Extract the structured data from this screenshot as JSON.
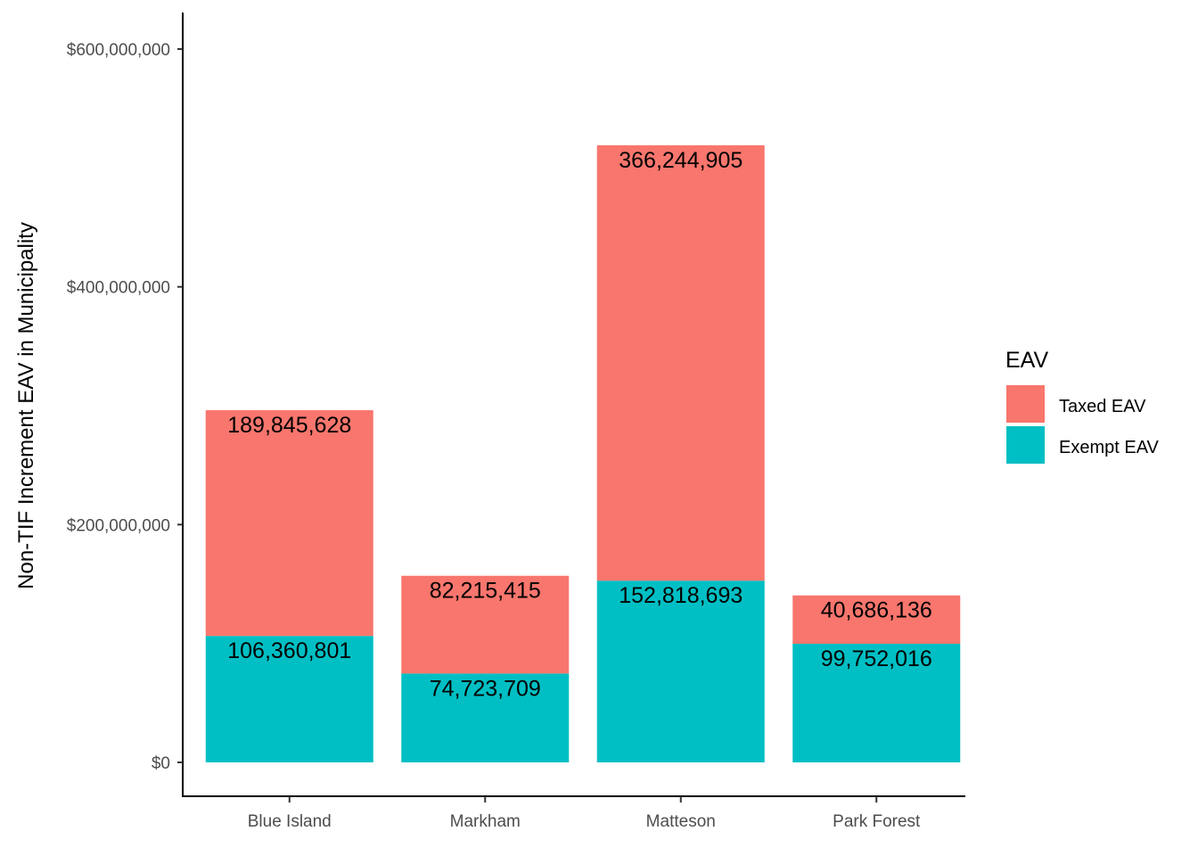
{
  "chart_data": {
    "type": "bar",
    "stacked": true,
    "title": "",
    "xlabel": "",
    "ylabel": "Non-TIF Increment EAV in Municipality",
    "ylim": [
      0,
      630000000
    ],
    "yticks": [
      0,
      200000000,
      400000000,
      600000000
    ],
    "ytick_labels": [
      "$0",
      "$200,000,000",
      "$400,000,000",
      "$600,000,000"
    ],
    "categories": [
      "Blue Island",
      "Markham",
      "Matteson",
      "Park Forest"
    ],
    "series": [
      {
        "name": "Exempt EAV",
        "color": "#00BFC4",
        "values": [
          106360801,
          74723709,
          152818693,
          99752016
        ],
        "labels": [
          "106,360,801",
          "74,723,709",
          "152,818,693",
          "99,752,016"
        ]
      },
      {
        "name": "Taxed EAV",
        "color": "#F8766D",
        "values": [
          189845628,
          82215415,
          366244905,
          40686136
        ],
        "labels": [
          "189,845,628",
          "82,215,415",
          "366,244,905",
          "40,686,136"
        ]
      }
    ],
    "legend": {
      "title": "EAV",
      "position": "right",
      "entries": [
        {
          "label": "Taxed EAV",
          "color": "#F8766D"
        },
        {
          "label": "Exempt EAV",
          "color": "#00BFC4"
        }
      ]
    },
    "grid": false
  }
}
